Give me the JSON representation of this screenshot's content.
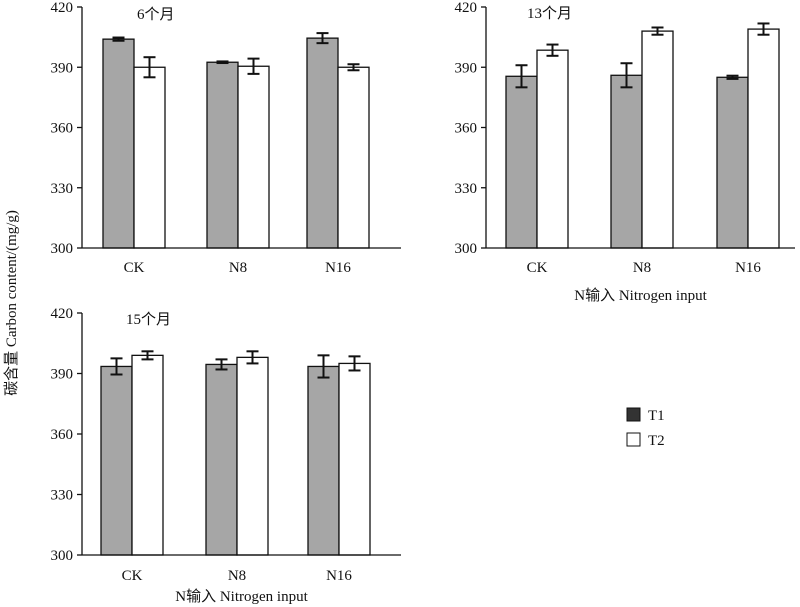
{
  "ylabel": "碳含量 Carbon content/(mg/g)",
  "legend": [
    {
      "label": "T1",
      "color": "#333333"
    },
    {
      "label": "T2",
      "color": "#ffffff"
    }
  ],
  "colors": {
    "T1_bar": "#a6a6a6",
    "T2_bar": "#ffffff",
    "axis": "#111111"
  },
  "chart_data": [
    {
      "type": "bar",
      "title": "6个月",
      "categories": [
        "CK",
        "N8",
        "N16"
      ],
      "xlabel": "",
      "ylim": [
        300,
        420
      ],
      "yticks": [
        300,
        330,
        360,
        390,
        420
      ],
      "series": [
        {
          "name": "T1",
          "values": [
            404,
            392.5,
            404.5
          ],
          "errors": [
            0.8,
            0.4,
            2.5
          ]
        },
        {
          "name": "T2",
          "values": [
            390,
            390.5,
            390
          ],
          "errors": [
            5,
            3.8,
            1.5
          ]
        }
      ]
    },
    {
      "type": "bar",
      "title": "13个月",
      "categories": [
        "CK",
        "N8",
        "N16"
      ],
      "xlabel": "N输入 Nitrogen input",
      "ylim": [
        300,
        420
      ],
      "yticks": [
        300,
        330,
        360,
        390,
        420
      ],
      "series": [
        {
          "name": "T1",
          "values": [
            385.5,
            386,
            385
          ],
          "errors": [
            5.5,
            6,
            0.8
          ]
        },
        {
          "name": "T2",
          "values": [
            398.5,
            408,
            409
          ],
          "errors": [
            2.8,
            1.8,
            2.8
          ]
        }
      ]
    },
    {
      "type": "bar",
      "title": "15个月",
      "categories": [
        "CK",
        "N8",
        "N16"
      ],
      "xlabel": "N输入 Nitrogen input",
      "ylim": [
        300,
        420
      ],
      "yticks": [
        300,
        330,
        360,
        390,
        420
      ],
      "series": [
        {
          "name": "T1",
          "values": [
            393.5,
            394.5,
            393.5
          ],
          "errors": [
            4,
            2.5,
            5.5
          ]
        },
        {
          "name": "T2",
          "values": [
            399,
            398,
            395
          ],
          "errors": [
            2,
            3,
            3.5
          ]
        }
      ]
    }
  ]
}
